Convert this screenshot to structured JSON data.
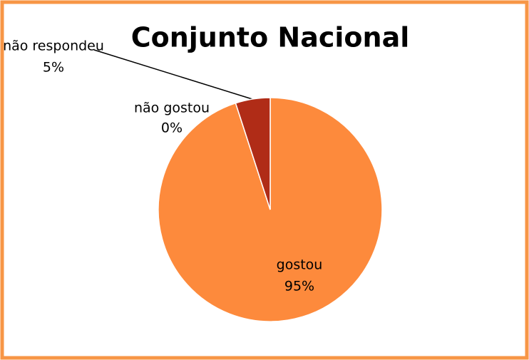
{
  "chart_data": {
    "type": "pie",
    "title": "Conjunto Nacional",
    "categories": [
      "gostou",
      "não  gostou",
      "não respondeu"
    ],
    "values": [
      95,
      0,
      5
    ],
    "value_labels": [
      "95%",
      "0%",
      "5%"
    ],
    "colors": [
      "#fd8a3c",
      "#c0504d",
      "#b02c17"
    ]
  }
}
